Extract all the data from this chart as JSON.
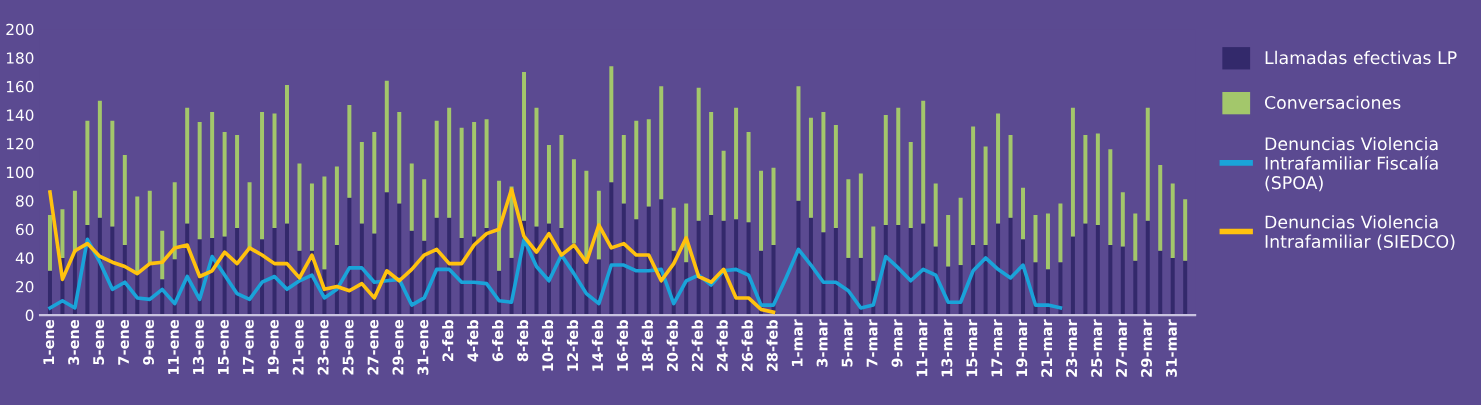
{
  "chart_data": {
    "type": "bar",
    "stacked": true,
    "legend": "right",
    "ylim": [
      0,
      200
    ],
    "yticks": [
      0,
      20,
      40,
      60,
      80,
      100,
      120,
      140,
      160,
      180,
      200
    ],
    "categories": [
      "1-ene",
      null,
      "3-ene",
      null,
      "5-ene",
      null,
      "7-ene",
      null,
      "9-ene",
      null,
      "11-ene",
      null,
      "13-ene",
      null,
      "15-ene",
      null,
      "17-ene",
      null,
      "19-ene",
      null,
      "21-ene",
      null,
      "23-ene",
      null,
      "25-ene",
      null,
      "27-ene",
      null,
      "29-ene",
      null,
      "31-ene",
      null,
      "2-feb",
      null,
      "4-feb",
      null,
      "6-feb",
      null,
      "8-feb",
      null,
      "10-feb",
      null,
      "12-feb",
      null,
      "14-feb",
      null,
      "16-feb",
      null,
      "18-feb",
      null,
      "20-feb",
      null,
      "22-feb",
      null,
      "24-feb",
      null,
      "26-feb",
      null,
      "28-feb",
      null,
      "1-mar",
      null,
      "3-mar",
      null,
      "5-mar",
      null,
      "7-mar",
      null,
      "9-mar",
      null,
      "11-mar",
      null,
      "13-mar",
      null,
      "15-mar",
      null,
      "17-mar",
      null,
      "19-mar",
      null,
      "21-mar",
      null,
      "23-mar",
      null,
      "25-mar",
      null,
      "27-mar",
      null,
      "29-mar",
      null,
      "31-mar",
      null
    ],
    "series": [
      {
        "name": "Llamadas efectivas LP",
        "color": "#33296b",
        "values": [
          31,
          40,
          44,
          63,
          68,
          62,
          49,
          30,
          36,
          25,
          39,
          64,
          53,
          54,
          55,
          61,
          46,
          53,
          61,
          64,
          45,
          45,
          32,
          49,
          82,
          64,
          57,
          86,
          78,
          59,
          52,
          68,
          68,
          54,
          55,
          61,
          31,
          40,
          66,
          62,
          64,
          61,
          50,
          37,
          39,
          93,
          78,
          67,
          76,
          81,
          45,
          37,
          66,
          70,
          66,
          67,
          65,
          45,
          49,
          null,
          80,
          68,
          58,
          61,
          40,
          40,
          24,
          63,
          63,
          61,
          64,
          48,
          34,
          35,
          49,
          49,
          64,
          68,
          53,
          37,
          32,
          37,
          55,
          64,
          63,
          49,
          48,
          38,
          66,
          45,
          40,
          38
        ]
      },
      {
        "name": "Conversaciones",
        "color": "#a3c76b",
        "values": [
          39,
          34,
          43,
          73,
          82,
          74,
          63,
          53,
          51,
          34,
          54,
          81,
          82,
          88,
          73,
          65,
          47,
          89,
          80,
          97,
          61,
          47,
          65,
          55,
          65,
          57,
          71,
          78,
          64,
          47,
          43,
          68,
          77,
          77,
          80,
          76,
          63,
          50,
          104,
          83,
          55,
          65,
          59,
          64,
          48,
          81,
          48,
          69,
          61,
          79,
          30,
          41,
          93,
          72,
          49,
          78,
          63,
          56,
          54,
          null,
          80,
          70,
          84,
          72,
          55,
          59,
          38,
          77,
          82,
          60,
          86,
          44,
          36,
          47,
          83,
          69,
          77,
          58,
          36,
          33,
          39,
          41,
          90,
          62,
          64,
          67,
          38,
          33,
          79,
          60,
          52,
          43
        ]
      },
      {
        "name": "Denuncias Violencia Intrafamiliar Fiscalía (SPOA)",
        "type": "line",
        "color": "#1aa3d9",
        "values": [
          5,
          10,
          5,
          53,
          37,
          18,
          23,
          12,
          11,
          18,
          8,
          27,
          11,
          41,
          28,
          15,
          11,
          23,
          27,
          18,
          24,
          28,
          12,
          18,
          33,
          33,
          23,
          24,
          25,
          7,
          12,
          32,
          32,
          23,
          23,
          22,
          10,
          9,
          53,
          34,
          24,
          42,
          29,
          15,
          8,
          35,
          35,
          31,
          31,
          32,
          8,
          24,
          28,
          21,
          31,
          32,
          28,
          7,
          7,
          26,
          46,
          35,
          23,
          23,
          17,
          5,
          7,
          41,
          33,
          24,
          32,
          28,
          9,
          9,
          31,
          40,
          32,
          26,
          35,
          7,
          7,
          5,
          null,
          null,
          null,
          null,
          null,
          null,
          null,
          null,
          null,
          null
        ]
      },
      {
        "name": "Denuncias Violencia Intrafamiliar (SIEDCO)",
        "type": "line",
        "color": "#ffc20e",
        "values": [
          86,
          25,
          45,
          50,
          41,
          37,
          34,
          29,
          36,
          37,
          47,
          49,
          27,
          31,
          44,
          36,
          47,
          42,
          36,
          36,
          26,
          42,
          18,
          20,
          17,
          22,
          12,
          31,
          24,
          32,
          42,
          46,
          36,
          36,
          49,
          57,
          60,
          88,
          55,
          44,
          57,
          42,
          49,
          37,
          63,
          47,
          50,
          42,
          42,
          24,
          36,
          54,
          27,
          23,
          32,
          12,
          12,
          4,
          2,
          null,
          null,
          null,
          null,
          null,
          null,
          null,
          null,
          null,
          null,
          null,
          null,
          null,
          null,
          null,
          null,
          null,
          null,
          null,
          null,
          null,
          null,
          null,
          null,
          null,
          null,
          null,
          null,
          null,
          null,
          null,
          null,
          null
        ]
      }
    ]
  }
}
